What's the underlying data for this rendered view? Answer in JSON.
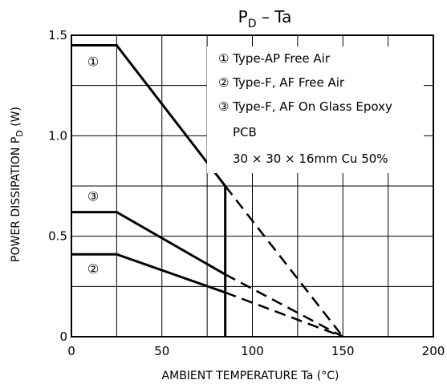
{
  "chart_data": {
    "type": "line",
    "title": {
      "main": "P",
      "sub": "D",
      "rest": " – Ta"
    },
    "xlabel": "AMBIENT TEMPERATURE    Ta    (°C)",
    "ylabel": {
      "main": "POWER DISSIPATION    P",
      "sub": "D",
      "rest": "    (W)"
    },
    "xlim": [
      0,
      200
    ],
    "ylim": [
      0,
      1.5
    ],
    "x_ticks": [
      0,
      50,
      100,
      150,
      200
    ],
    "x_tick_labels": [
      "0",
      "50",
      "100",
      "150",
      "200"
    ],
    "y_ticks": [
      0,
      0.5,
      1.0,
      1.5
    ],
    "y_tick_labels": [
      "0",
      "0.5",
      "1.0",
      "1.5"
    ],
    "x_minor_grid": [
      25,
      75,
      125,
      175
    ],
    "y_minor_grid": [
      0.25,
      0.75,
      1.25
    ],
    "grid": true,
    "series": [
      {
        "marker": "①",
        "label": "Type-AP Free Air",
        "solid": [
          [
            0,
            1.45
          ],
          [
            25,
            1.45
          ],
          [
            85,
            0.75
          ],
          [
            85,
            0
          ]
        ],
        "dashed": [
          [
            85,
            0.75
          ],
          [
            150,
            0
          ]
        ]
      },
      {
        "marker": "②",
        "label": "Type-F, AF Free Air",
        "solid": [
          [
            0,
            0.41
          ],
          [
            25,
            0.41
          ],
          [
            85,
            0.22
          ]
        ],
        "dashed": [
          [
            85,
            0.22
          ],
          [
            150,
            0
          ]
        ]
      },
      {
        "marker": "③",
        "label": "Type-F, AF On Glass Epoxy",
        "solid": [
          [
            0,
            0.62
          ],
          [
            25,
            0.62
          ],
          [
            85,
            0.31
          ]
        ],
        "dashed": [
          [
            85,
            0.31
          ],
          [
            150,
            0
          ]
        ]
      }
    ],
    "curve_markers": [
      {
        "text": "①",
        "x": 12,
        "y": 1.37
      },
      {
        "text": "③",
        "x": 12,
        "y": 0.7
      },
      {
        "text": "②",
        "x": 12,
        "y": 0.34
      }
    ],
    "legend": {
      "placement": "top-right",
      "lines": [
        "①  Type-AP Free Air",
        "②  Type-F, AF Free Air",
        "③  Type-F, AF On Glass Epoxy",
        "PCB",
        "30 × 30 × 16mm  Cu 50%"
      ]
    }
  }
}
